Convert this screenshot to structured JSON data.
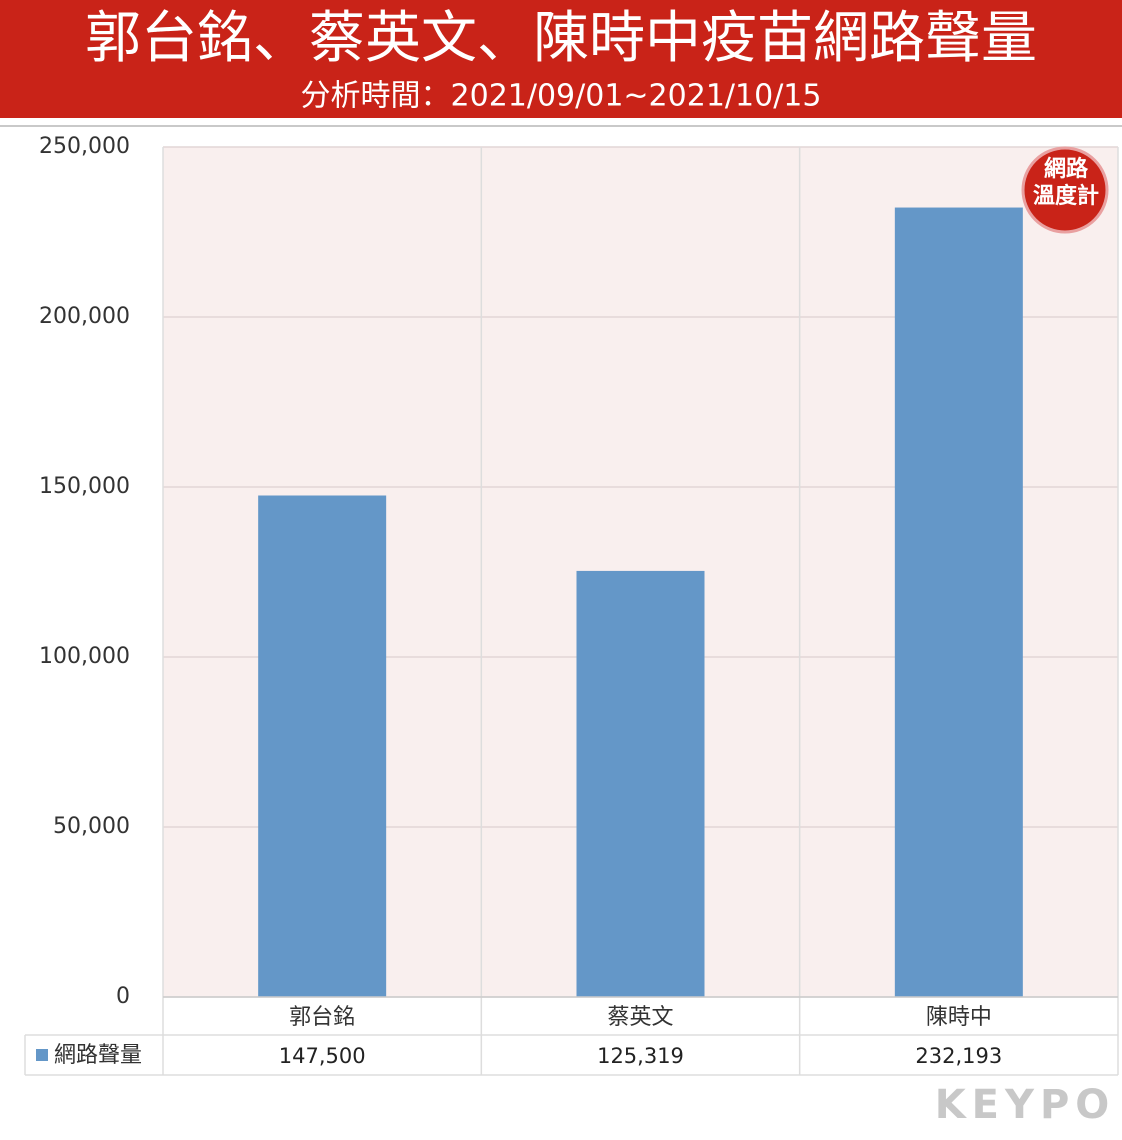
{
  "chart_data": {
    "type": "bar",
    "title": "郭台銘、蔡英文、陳時中疫苗網路聲量",
    "subtitle": "分析時間：2021/09/01~2021/10/15",
    "categories": [
      "郭台銘",
      "蔡英文",
      "陳時中"
    ],
    "series": [
      {
        "name": "網路聲量",
        "color": "#6497c8",
        "values": [
          147500,
          125319,
          232193
        ],
        "value_labels": [
          "147,500",
          "125,319",
          "232,193"
        ]
      }
    ],
    "ylim": [
      0,
      250000
    ],
    "yticks": [
      0,
      {
        "value": 50000,
        "label": "50,000"
      },
      {
        "value": 100000,
        "label": "100,000"
      },
      {
        "value": 150000,
        "label": "150,000"
      },
      {
        "value": 200000,
        "label": "200,000"
      },
      {
        "value": 250000,
        "label": "250,000"
      }
    ],
    "grid": true,
    "logo": [
      "網路",
      "溫度計"
    ],
    "watermark": "KEYPO"
  }
}
